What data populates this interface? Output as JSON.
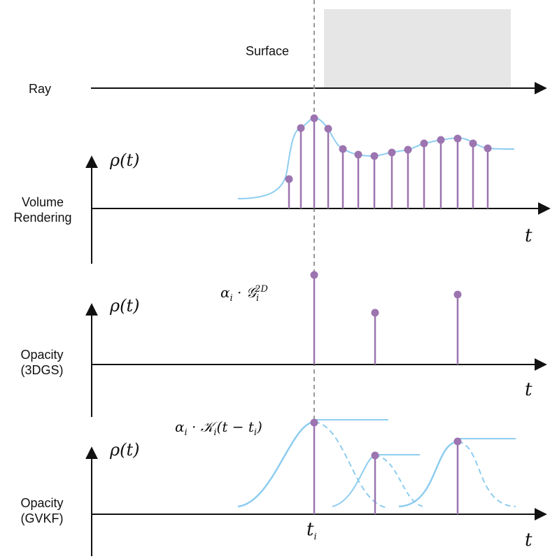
{
  "labels": {
    "surface": "Surface",
    "ray": "Ray",
    "volume_rendering": [
      "Volume",
      "Rendering"
    ],
    "opacity_3dgs": [
      "Opacity",
      "(3DGS)"
    ],
    "opacity_gvkf": [
      "Opacity",
      "(GVKF)"
    ],
    "rho": "ρ(t)",
    "t_axis": "t",
    "t_i": "t",
    "t_i_sub": "i",
    "formula_3dgs": {
      "main": "α",
      "sub": "i",
      "mid": " · 𝒢",
      "sub2": "i",
      "sup2": "2D"
    },
    "formula_gvkf": {
      "main": "α",
      "sub": "i",
      "mid": " · 𝒦",
      "sub2": "i",
      "tail": "(t − t",
      "sub3": "i",
      "end": ")"
    }
  },
  "colors": {
    "axis": "#111111",
    "curve": "#8ecdf0",
    "stem": "#9c74b0",
    "dot": "#9c74b0",
    "surface_fill": "#e6e6e6",
    "dashed_line": "#999999"
  }
}
